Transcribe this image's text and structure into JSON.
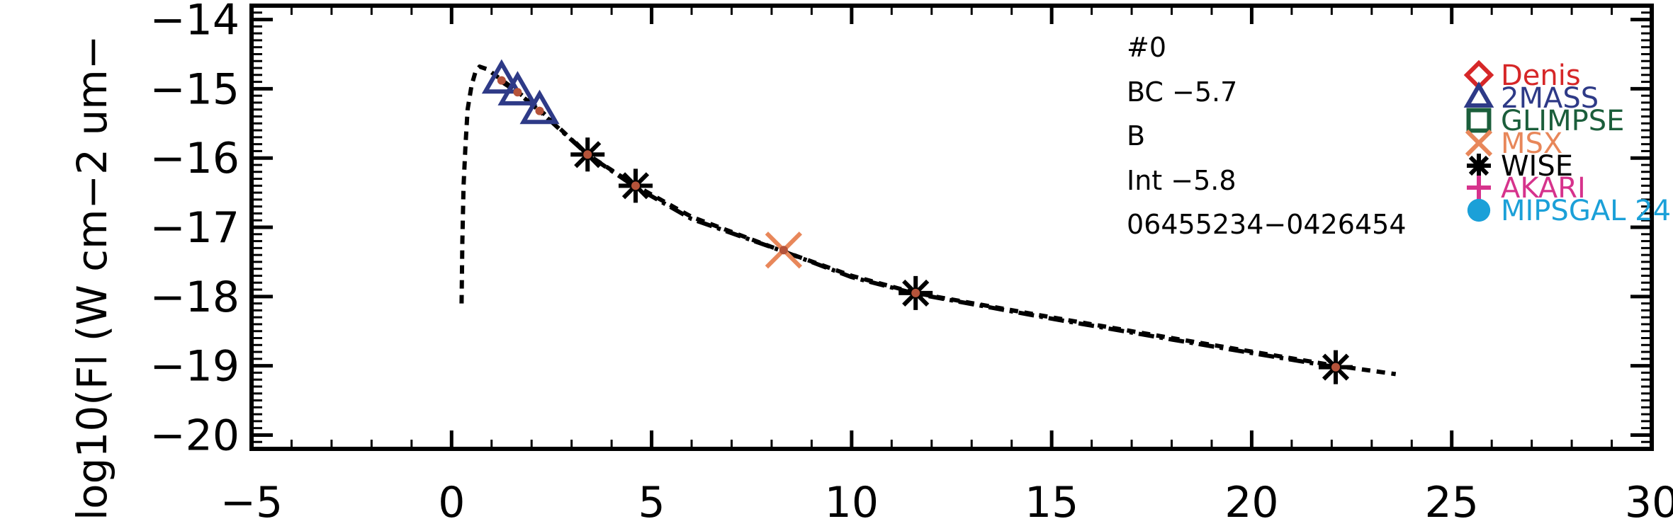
{
  "chart_data": {
    "type": "scatter",
    "title": "",
    "xlabel": "",
    "ylabel": "log10(Fl (W cm−2 um−",
    "xlim": [
      -5,
      30
    ],
    "ylim": [
      -20.2,
      -13.8
    ],
    "x_ticks": [
      "−5",
      "0",
      "5",
      "10",
      "15",
      "20",
      "25",
      "30"
    ],
    "y_ticks": [
      "−14",
      "−15",
      "−16",
      "−17",
      "−18",
      "−19",
      "−20"
    ],
    "info_lines": [
      "#0",
      "BC −5.7",
      "B",
      "Int −5.8",
      "06455234−0426454"
    ],
    "model_curve": {
      "style": "dashed",
      "x": [
        0.25,
        0.27,
        0.3,
        0.35,
        0.4,
        0.5,
        0.6,
        0.7,
        0.9,
        1.2,
        1.6,
        2.2,
        3.4,
        4.6,
        6.0,
        8.3,
        10.0,
        11.6,
        15.0,
        18.0,
        22.1,
        23.6
      ],
      "y": [
        -18.1,
        -17.2,
        -16.4,
        -15.8,
        -15.3,
        -14.95,
        -14.75,
        -14.68,
        -14.72,
        -14.85,
        -15.02,
        -15.3,
        -15.95,
        -16.4,
        -16.85,
        -17.35,
        -17.7,
        -17.95,
        -18.3,
        -18.6,
        -19.0,
        -19.12
      ]
    },
    "fit_curve": {
      "style": "dash-dot",
      "x": [
        1.2,
        1.6,
        2.2,
        3.4,
        4.6,
        6.0,
        8.3,
        10.0,
        11.6,
        15.0,
        18.0,
        22.1
      ],
      "y": [
        -14.88,
        -15.03,
        -15.32,
        -15.95,
        -16.42,
        -16.88,
        -17.35,
        -17.72,
        -17.96,
        -18.32,
        -18.62,
        -19.02
      ]
    },
    "series": [
      {
        "name": "Denis",
        "marker": "diamond",
        "color": "#d62728",
        "x": [],
        "y": []
      },
      {
        "name": "2MASS",
        "marker": "triangle",
        "color": "#2e3a87",
        "x": [
          1.25,
          1.65,
          2.2
        ],
        "y": [
          -14.88,
          -15.05,
          -15.32
        ]
      },
      {
        "name": "GLIMPSE",
        "marker": "square",
        "color": "#1b5e3b",
        "x": [],
        "y": []
      },
      {
        "name": "MSX",
        "marker": "x",
        "color": "#e8875a",
        "x": [
          8.3
        ],
        "y": [
          -17.33
        ]
      },
      {
        "name": "WISE",
        "marker": "asterisk",
        "color": "#000000",
        "x": [
          3.4,
          4.6,
          11.6,
          22.1
        ],
        "y": [
          -15.95,
          -16.4,
          -17.95,
          -19.02
        ]
      },
      {
        "name": "AKARI",
        "marker": "plus",
        "color": "#d6338c",
        "x": [],
        "y": []
      },
      {
        "name": "MIPSGAL 24",
        "marker": "circle",
        "color": "#1ba0d8",
        "x": [],
        "y": []
      }
    ],
    "model_point_color": "#b5533a",
    "model_points_x": [
      1.25,
      1.65,
      2.2,
      3.4,
      4.6,
      8.3,
      11.6,
      22.1
    ],
    "model_points_y": [
      -14.88,
      -15.05,
      -15.32,
      -15.95,
      -16.4,
      -17.33,
      -17.95,
      -19.02
    ],
    "grid": false,
    "legend_position": "right"
  }
}
